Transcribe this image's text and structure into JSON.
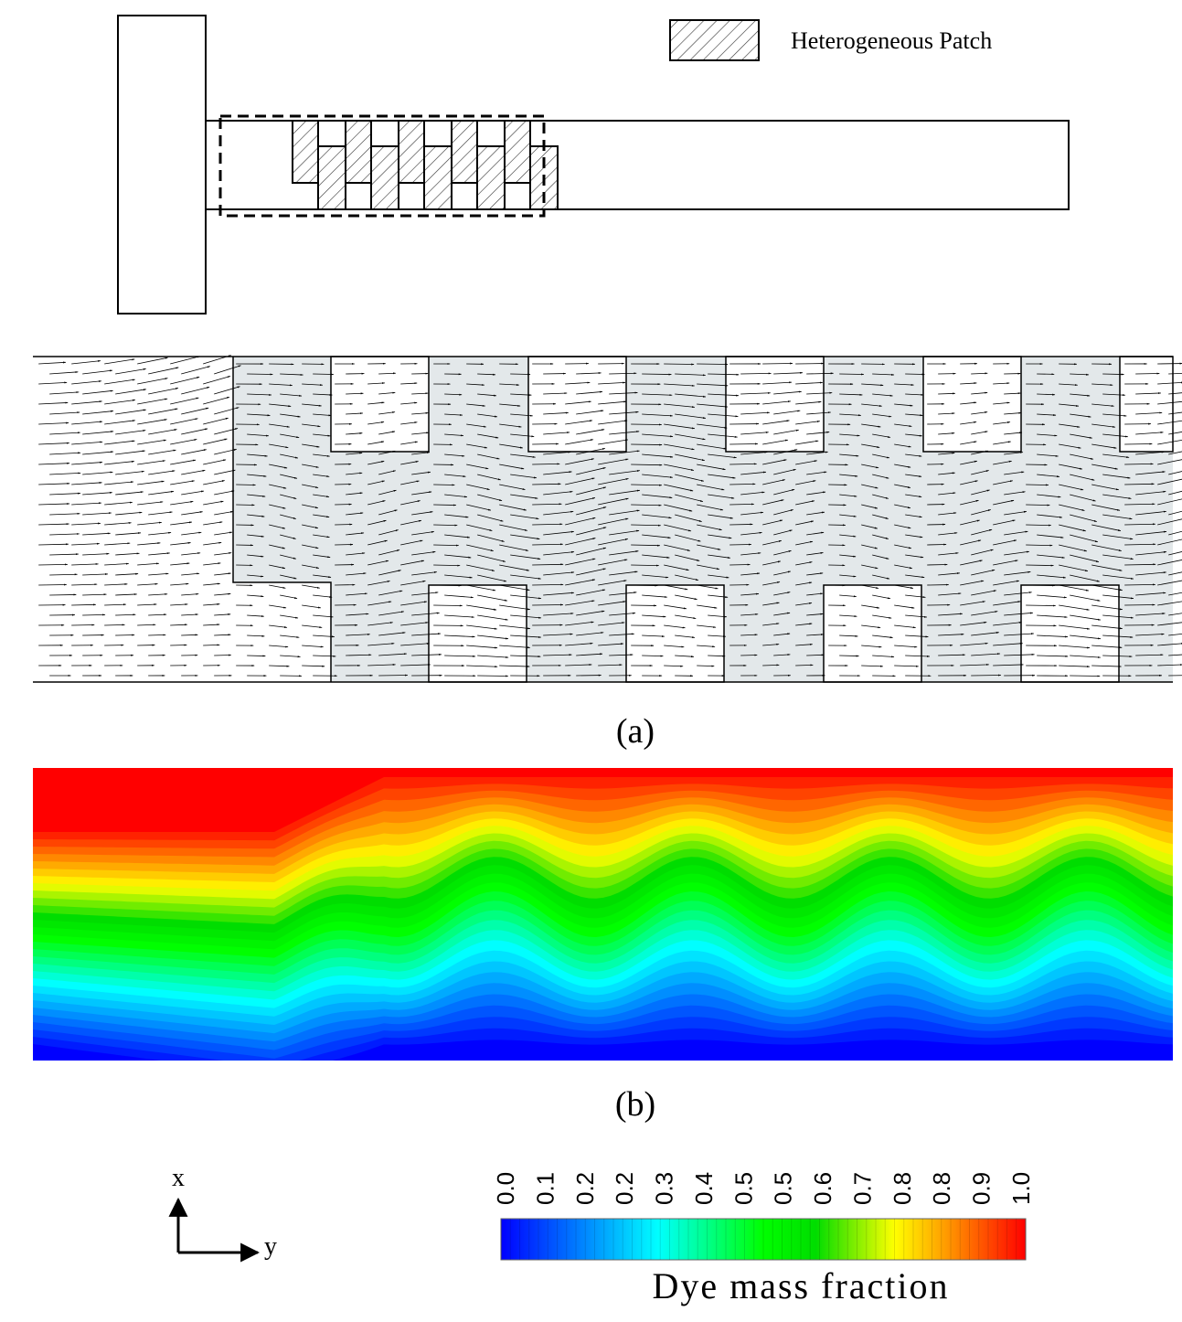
{
  "legend": {
    "label": "Heterogeneous Patch"
  },
  "panels": [
    {
      "caption": "(a)"
    },
    {
      "caption": "(b)"
    }
  ],
  "axes": {
    "x": "x",
    "y": "y"
  },
  "colorbar": {
    "ticks": [
      "0.0",
      "0.1",
      "0.2",
      "0.2",
      "0.3",
      "0.4",
      "0.5",
      "0.5",
      "0.6",
      "0.7",
      "0.8",
      "0.8",
      "0.9",
      "1.0"
    ],
    "title": "Dye mass fraction"
  }
}
